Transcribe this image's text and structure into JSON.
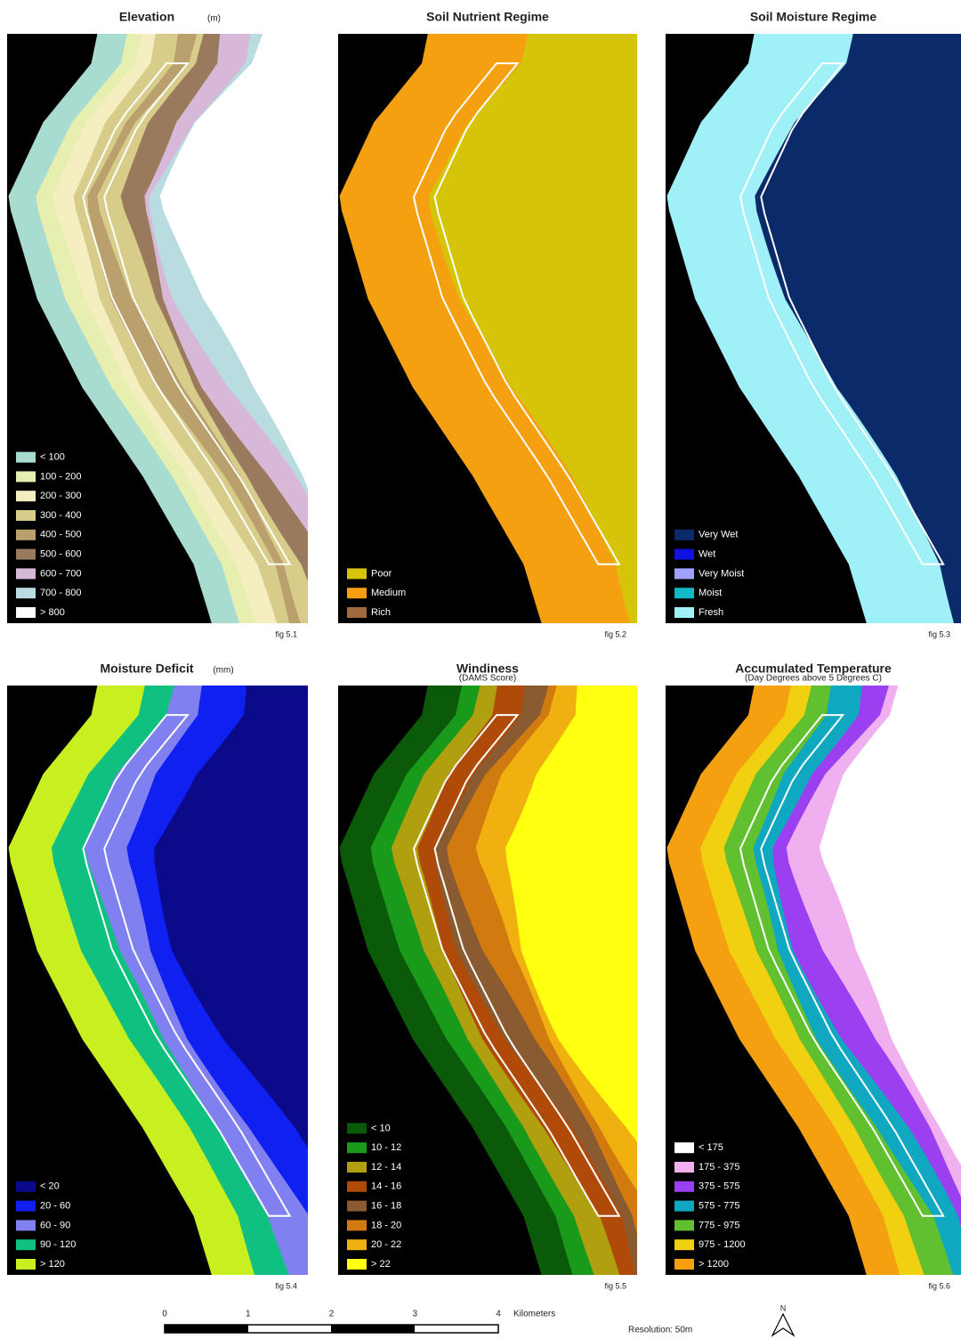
{
  "panels": [
    {
      "title": "Elevation",
      "unit": "(m)",
      "fig": "fig 5.1",
      "legend": [
        {
          "label": "< 100",
          "color": "#a8dcd0"
        },
        {
          "label": "100 - 200",
          "color": "#e6efb0"
        },
        {
          "label": "200 - 300",
          "color": "#f5eec0"
        },
        {
          "label": "300 - 400",
          "color": "#d8cc8a"
        },
        {
          "label": "400 - 500",
          "color": "#b9a06c"
        },
        {
          "label": "500 - 600",
          "color": "#9a7a5c"
        },
        {
          "label": "600 - 700",
          "color": "#d8b8d8"
        },
        {
          "label": "700 - 800",
          "color": "#b8dce0"
        },
        {
          "label": "> 800",
          "color": "#ffffff"
        }
      ]
    },
    {
      "title": "Soil Nutrient Regime",
      "fig": "fig 5.2",
      "legend": [
        {
          "label": "Poor",
          "color": "#d6c40a"
        },
        {
          "label": "Medium",
          "color": "#f5a010"
        },
        {
          "label": "Rich",
          "color": "#a06a40"
        }
      ]
    },
    {
      "title": "Soil Moisture Regime",
      "fig": "fig 5.3",
      "legend": [
        {
          "label": "Very Wet",
          "color": "#0a2a6a"
        },
        {
          "label": "Wet",
          "color": "#1010e0"
        },
        {
          "label": "Very Moist",
          "color": "#a0a0ff"
        },
        {
          "label": "Moist",
          "color": "#10b8c8"
        },
        {
          "label": "Fresh",
          "color": "#a0f0f8"
        }
      ]
    },
    {
      "title": "Moisture Deficit",
      "unit": "(mm)",
      "fig": "fig 5.4",
      "legend": [
        {
          "label": "< 20",
          "color": "#0a0a8a"
        },
        {
          "label": "20 - 60",
          "color": "#1020f0"
        },
        {
          "label": "60 - 90",
          "color": "#8080f0"
        },
        {
          "label": "90 - 120",
          "color": "#10c080"
        },
        {
          "label": "> 120",
          "color": "#c8f020"
        }
      ]
    },
    {
      "title": "Windiness",
      "subtitle": "(DAMS Score)",
      "fig": "fig 5.5",
      "legend": [
        {
          "label": "< 10",
          "color": "#0a5a0a"
        },
        {
          "label": "10 - 12",
          "color": "#1a9a1a"
        },
        {
          "label": "12 - 14",
          "color": "#b0a010"
        },
        {
          "label": "14 - 16",
          "color": "#b04a08"
        },
        {
          "label": "16 - 18",
          "color": "#8a5a30"
        },
        {
          "label": "18 - 20",
          "color": "#d07a10"
        },
        {
          "label": "20 - 22",
          "color": "#f0b010"
        },
        {
          "label": "> 22",
          "color": "#ffff10"
        }
      ]
    },
    {
      "title": "Accumulated Temperature",
      "subtitle": "(Day Degrees above 5 Degrees C)",
      "fig": "fig 5.6",
      "legend": [
        {
          "label": "< 175",
          "color": "#ffffff"
        },
        {
          "label": "175 - 375",
          "color": "#f0b0f0"
        },
        {
          "label": "375 - 575",
          "color": "#9a40f0"
        },
        {
          "label": "575 - 775",
          "color": "#10a8c0"
        },
        {
          "label": "775 - 975",
          "color": "#60c030"
        },
        {
          "label": "975 - 1200",
          "color": "#f0d010"
        },
        {
          "label": "> 1200",
          "color": "#f5a010"
        }
      ]
    }
  ],
  "scale": {
    "ticks": [
      "0",
      "1",
      "2",
      "3",
      "4"
    ],
    "unit": "Kilometers"
  },
  "resolution": "Resolution: 50m",
  "north": "N"
}
